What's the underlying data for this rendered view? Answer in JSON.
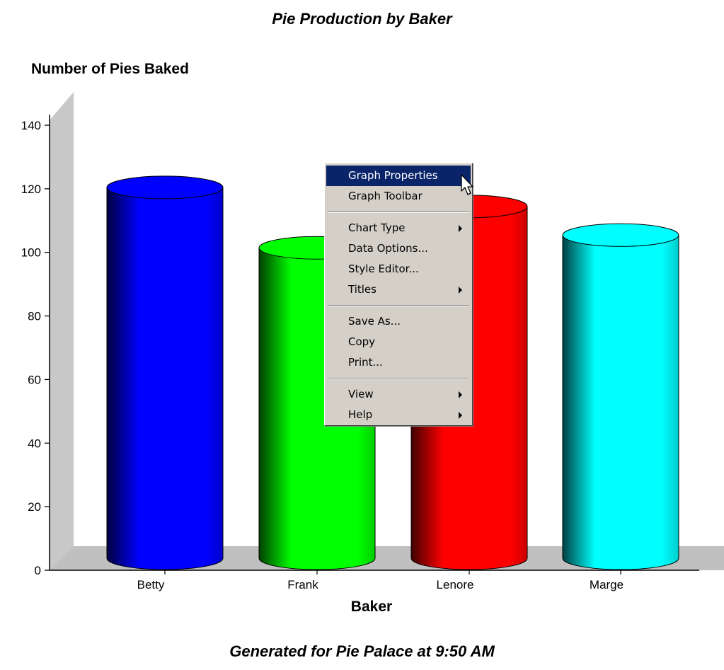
{
  "chart_data": {
    "type": "bar",
    "style": "3d-cylinder",
    "title": "Pie Production by Baker",
    "ylabel": "Number of Pies Baked",
    "xlabel": "Baker",
    "footnote": "Generated for Pie Palace at 9:50 AM",
    "categories": [
      "Betty",
      "Frank",
      "Lenore",
      "Marge"
    ],
    "values": [
      124,
      105,
      118,
      109
    ],
    "colors": [
      "#0000ff",
      "#00ff00",
      "#ff0000",
      "#00ffff"
    ],
    "ylim": [
      0,
      140
    ],
    "yticks": [
      0,
      20,
      40,
      60,
      80,
      100,
      120,
      140
    ],
    "grid": false,
    "legend": false
  },
  "context_menu": {
    "items": [
      {
        "label": "Graph Properties",
        "highlighted": true,
        "submenu": false
      },
      {
        "label": "Graph Toolbar",
        "submenu": false
      },
      {
        "separator": true
      },
      {
        "label": "Chart Type",
        "submenu": true
      },
      {
        "label": "Data Options...",
        "submenu": false
      },
      {
        "label": "Style Editor...",
        "submenu": false
      },
      {
        "label": "Titles",
        "submenu": true
      },
      {
        "separator": true
      },
      {
        "label": "Save As...",
        "submenu": false
      },
      {
        "label": "Copy",
        "submenu": false
      },
      {
        "label": "Print...",
        "submenu": false
      },
      {
        "separator": true
      },
      {
        "label": "View",
        "submenu": true
      },
      {
        "label": "Help",
        "submenu": true
      }
    ],
    "cursor_icon": "arrow-pointer-icon"
  }
}
